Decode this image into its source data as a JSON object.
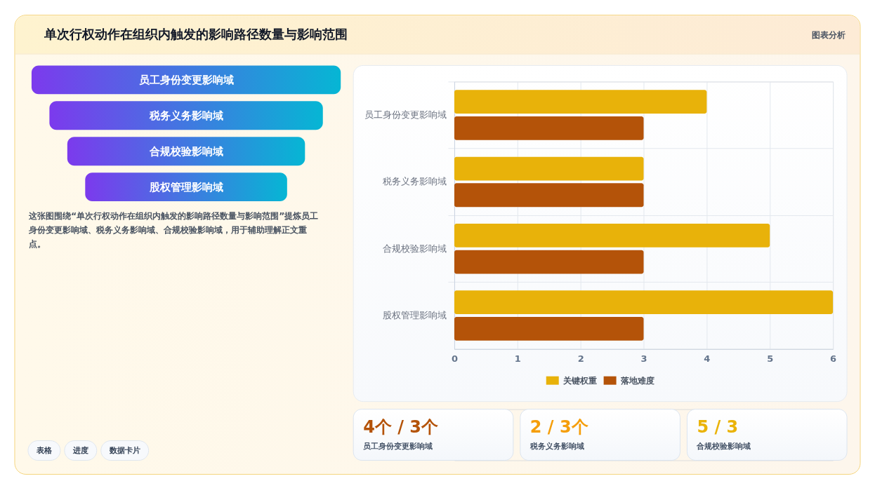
{
  "chart_data": [
    {
      "type": "other",
      "title": "单次行权动作在组织内触发的影响路径数量与影响范围",
      "categories": [
        "员工身份变更影响域",
        "税务义务影响域",
        "合规校验影响域",
        "股权管理影响域"
      ],
      "annotations": [
        "图表分析",
        "这张图围绕“单次行权动作在组织内触发的影响路径数量与影响范围”提炼员工身份变更影响域、税务义务影响域、合规校验影响域，用于辅助理解正文重点。",
        "表格",
        "进度",
        "数据卡片"
      ]
    },
    {
      "type": "bar",
      "orientation": "horizontal",
      "categories": [
        "员工身份变更影响域",
        "税务义务影响域",
        "合规校验影响域",
        "股权管理影响域"
      ],
      "series": [
        {
          "name": "关键权重",
          "color": "#e8b20a",
          "values": [
            4,
            3,
            5,
            6
          ]
        },
        {
          "name": "落地难度",
          "color": "#b45309",
          "values": [
            3,
            3,
            3,
            3
          ]
        }
      ],
      "xlim": [
        0,
        6
      ],
      "xticks": [
        0,
        1,
        2,
        3,
        4,
        5,
        6
      ],
      "grid": true,
      "legend": "bottom"
    },
    {
      "type": "other",
      "categories": [
        "员工身份变更影响域",
        "税务义务影响域",
        "合规校验影响域"
      ],
      "value_labels": [
        "4个 / 3个",
        "2 / 3个",
        "5 / 3"
      ]
    }
  ]
}
